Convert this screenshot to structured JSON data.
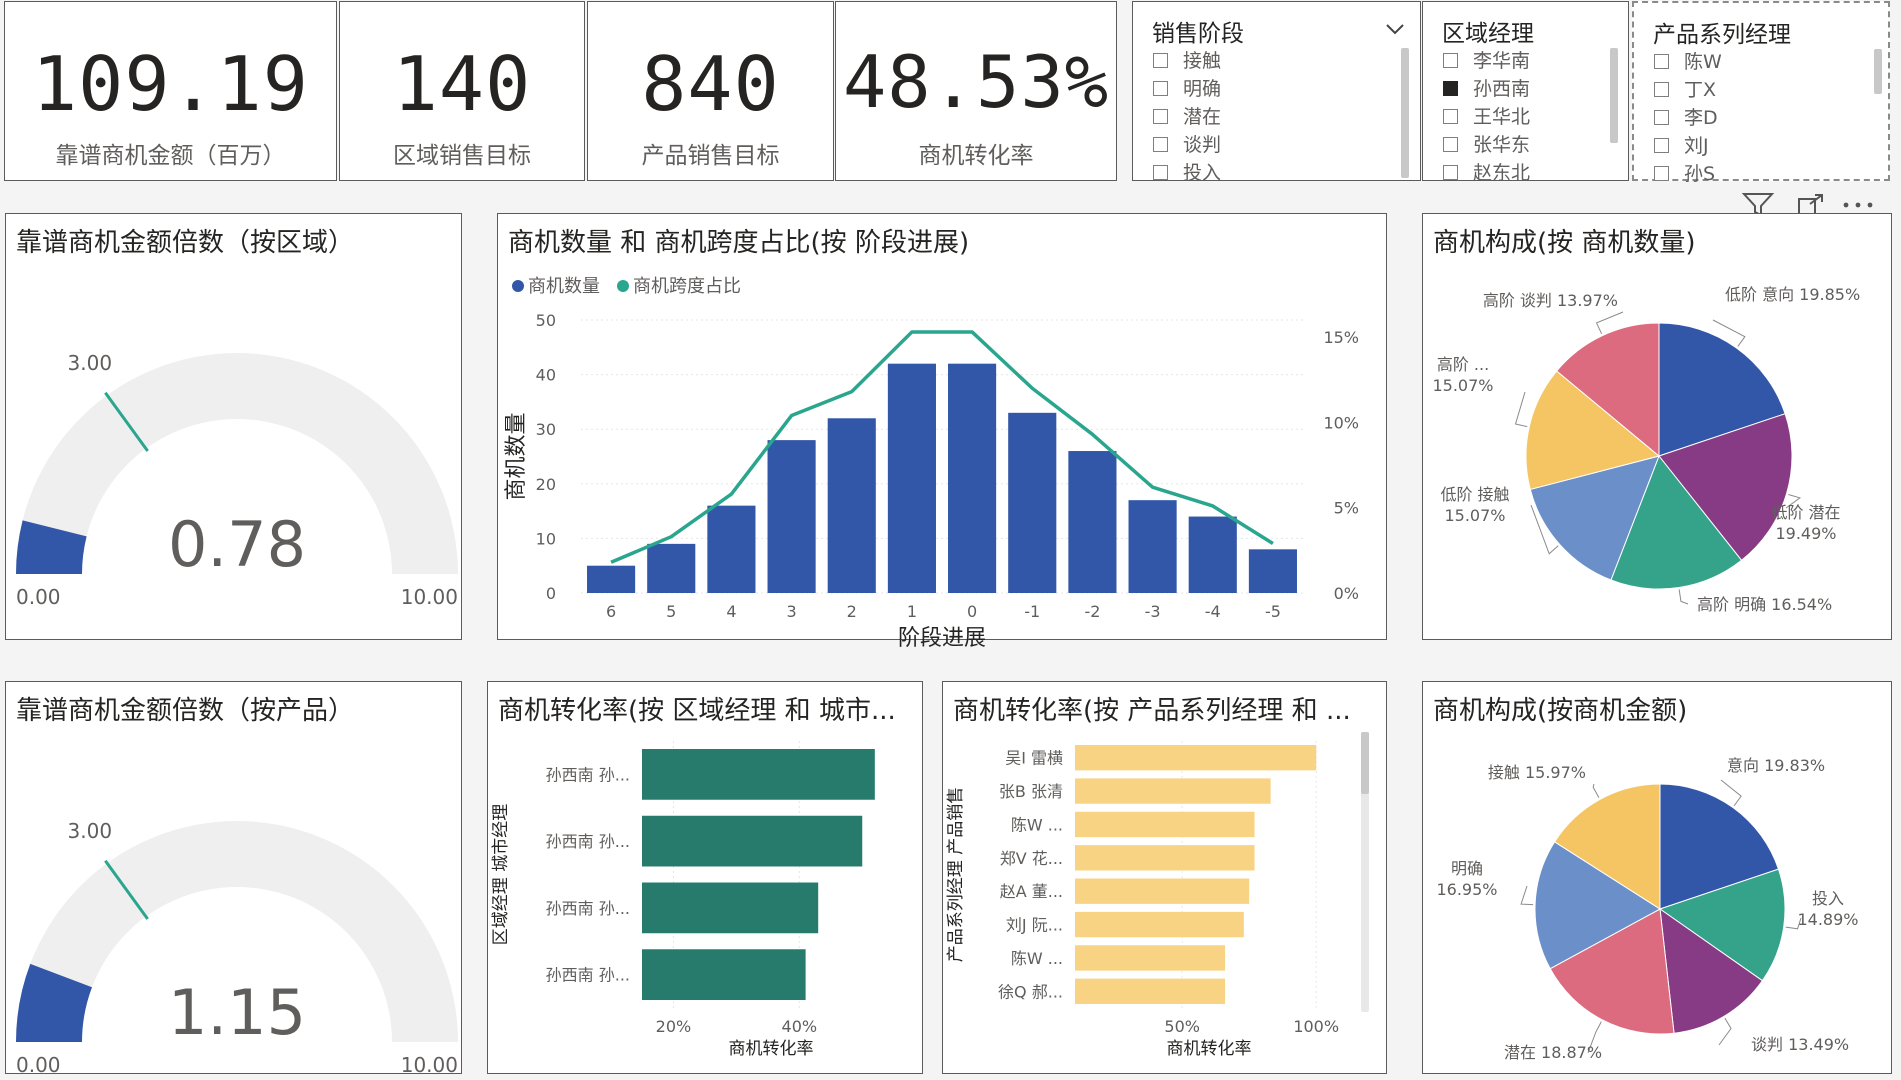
{
  "kpis": [
    {
      "value": "109.19",
      "label": "靠谱商机金额（百万）"
    },
    {
      "value": "140",
      "label": "区域销售目标"
    },
    {
      "value": "840",
      "label": "产品销售目标"
    },
    {
      "value": "48.53%",
      "label": "商机转化率"
    }
  ],
  "slicers": {
    "stage": {
      "title": "销售阶段",
      "items": [
        "接触",
        "明确",
        "潜在",
        "谈判",
        "投入"
      ],
      "selected": []
    },
    "region": {
      "title": "区域经理",
      "items": [
        "李华南",
        "孙西南",
        "王华北",
        "张华东",
        "赵东北"
      ],
      "selected": [
        "孙西南"
      ]
    },
    "product": {
      "title": "产品系列经理",
      "items": [
        "陈W",
        "丁X",
        "李D",
        "刘J",
        "孙S"
      ],
      "selected": []
    }
  },
  "visual_header_icons": [
    "filter-icon",
    "focus-mode-icon",
    "more-options-icon"
  ],
  "gauge_region": {
    "title": "靠谱商机金额倍数（按区域）",
    "chart_data": {
      "type": "gauge",
      "value": 0.78,
      "value_label": "0.78",
      "min": 0,
      "max": 10,
      "min_label": "0.00",
      "max_label": "10.00",
      "target": 3,
      "target_label": "3.00"
    }
  },
  "gauge_product": {
    "title": "靠谱商机金额倍数（按产品）",
    "chart_data": {
      "type": "gauge",
      "value": 1.15,
      "value_label": "1.15",
      "min": 0,
      "max": 10,
      "min_label": "0.00",
      "max_label": "10.00",
      "target": 3,
      "target_label": "3.00"
    }
  },
  "combo": {
    "title": "商机数量 和 商机跨度占比(按 阶段进展)",
    "chart_data": {
      "type": "bar",
      "categories": [
        "6",
        "5",
        "4",
        "3",
        "2",
        "1",
        "0",
        "-1",
        "-2",
        "-3",
        "-4",
        "-5"
      ],
      "series": [
        {
          "name": "商机数量",
          "type": "bar",
          "axis": "left",
          "values": [
            5,
            9,
            16,
            28,
            32,
            42,
            42,
            33,
            26,
            17,
            14,
            8
          ]
        },
        {
          "name": "商机跨度占比",
          "type": "line",
          "axis": "right",
          "values": [
            1.8,
            3.3,
            5.8,
            10.4,
            11.8,
            15.3,
            15.3,
            12.0,
            9.3,
            6.2,
            5.1,
            2.9
          ]
        }
      ],
      "xlabel": "阶段进展",
      "ylabel": "商机数量",
      "ylim": [
        0,
        50
      ],
      "yticks": [
        "0",
        "10",
        "20",
        "30",
        "40",
        "50"
      ],
      "y2lim": [
        0,
        16
      ],
      "y2ticks": [
        "0%",
        "5%",
        "10%",
        "15%"
      ],
      "legend": "top-left"
    }
  },
  "pie_count": {
    "title": "商机构成(按 商机数量)",
    "chart_data": {
      "type": "pie",
      "slices": [
        {
          "label": "低阶 意向 19.85%",
          "value": 19.85,
          "color": "#3257a8"
        },
        {
          "label": "低阶 潜在 19.49%",
          "value": 19.49,
          "color": "#883b85"
        },
        {
          "label": "高阶 明确 16.54%",
          "value": 16.54,
          "color": "#34a38a"
        },
        {
          "label": "低阶 接触 15.07%",
          "value": 15.07,
          "color": "#6b8fc9"
        },
        {
          "label": "高阶 ... 15.07%",
          "value": 15.07,
          "color": "#f5c563"
        },
        {
          "label": "高阶 谈判 13.97%",
          "value": 13.97,
          "color": "#dd6b7f"
        }
      ]
    },
    "labels": [
      {
        "line1": "低阶 意向 19.85%",
        "line2": ""
      },
      {
        "line1": "低阶 潜在",
        "line2": "19.49%"
      },
      {
        "line1": "高阶 明确 16.54%",
        "line2": ""
      },
      {
        "line1": "低阶 接触",
        "line2": "15.07%"
      },
      {
        "line1": "高阶 ...",
        "line2": "15.07%"
      },
      {
        "line1": "高阶 谈判 13.97%",
        "line2": ""
      }
    ]
  },
  "pie_amount": {
    "title": "商机构成(按商机金额)",
    "chart_data": {
      "type": "pie",
      "slices": [
        {
          "label": "意向 19.83%",
          "value": 19.83,
          "color": "#3257a8"
        },
        {
          "label": "投入 14.89%",
          "value": 14.89,
          "color": "#34a38a"
        },
        {
          "label": "谈判 13.49%",
          "value": 13.49,
          "color": "#883b85"
        },
        {
          "label": "潜在 18.87%",
          "value": 18.87,
          "color": "#dd6b7f"
        },
        {
          "label": "明确 16.95%",
          "value": 16.95,
          "color": "#6b8fc9"
        },
        {
          "label": "接触 15.97%",
          "value": 15.97,
          "color": "#f5c563"
        }
      ]
    },
    "labels": [
      {
        "line1": "意向 19.83%",
        "line2": ""
      },
      {
        "line1": "投入",
        "line2": "14.89%"
      },
      {
        "line1": "谈判 13.49%",
        "line2": ""
      },
      {
        "line1": "潜在 18.87%",
        "line2": ""
      },
      {
        "line1": "明确",
        "line2": "16.95%"
      },
      {
        "line1": "接触 15.97%",
        "line2": ""
      }
    ]
  },
  "bar_region": {
    "title": "商机转化率(按 区域经理 和 城市...",
    "chart_data": {
      "type": "bar",
      "orientation": "horizontal",
      "categories": [
        "孙西南 孙...",
        "孙西南 孙...",
        "孙西南 孙...",
        "孙西南 孙..."
      ],
      "values": [
        52,
        50,
        43,
        41
      ],
      "xlim": [
        15,
        56
      ],
      "xticks": [
        {
          "v": 20,
          "label": "20%"
        },
        {
          "v": 40,
          "label": "40%"
        }
      ],
      "xlabel": "商机转化率",
      "ylabel": "区域经理 城市经理",
      "color": "#267b6d"
    }
  },
  "bar_product": {
    "title": "商机转化率(按 产品系列经理 和 ...",
    "chart_data": {
      "type": "bar",
      "orientation": "horizontal",
      "categories": [
        "吴I 雷横",
        "张B 张清",
        "陈W ...",
        "郑V 花...",
        "赵A 董...",
        "刘J 阮...",
        "陈W ...",
        "徐Q 郝..."
      ],
      "values": [
        100,
        83,
        77,
        77,
        75,
        73,
        66,
        66
      ],
      "xlim": [
        10,
        110
      ],
      "xticks": [
        {
          "v": 50,
          "label": "50%"
        },
        {
          "v": 100,
          "label": "100%"
        }
      ],
      "xlabel": "商机转化率",
      "ylabel": "产品系列经理 产品销售",
      "color": "#f8d384"
    }
  }
}
